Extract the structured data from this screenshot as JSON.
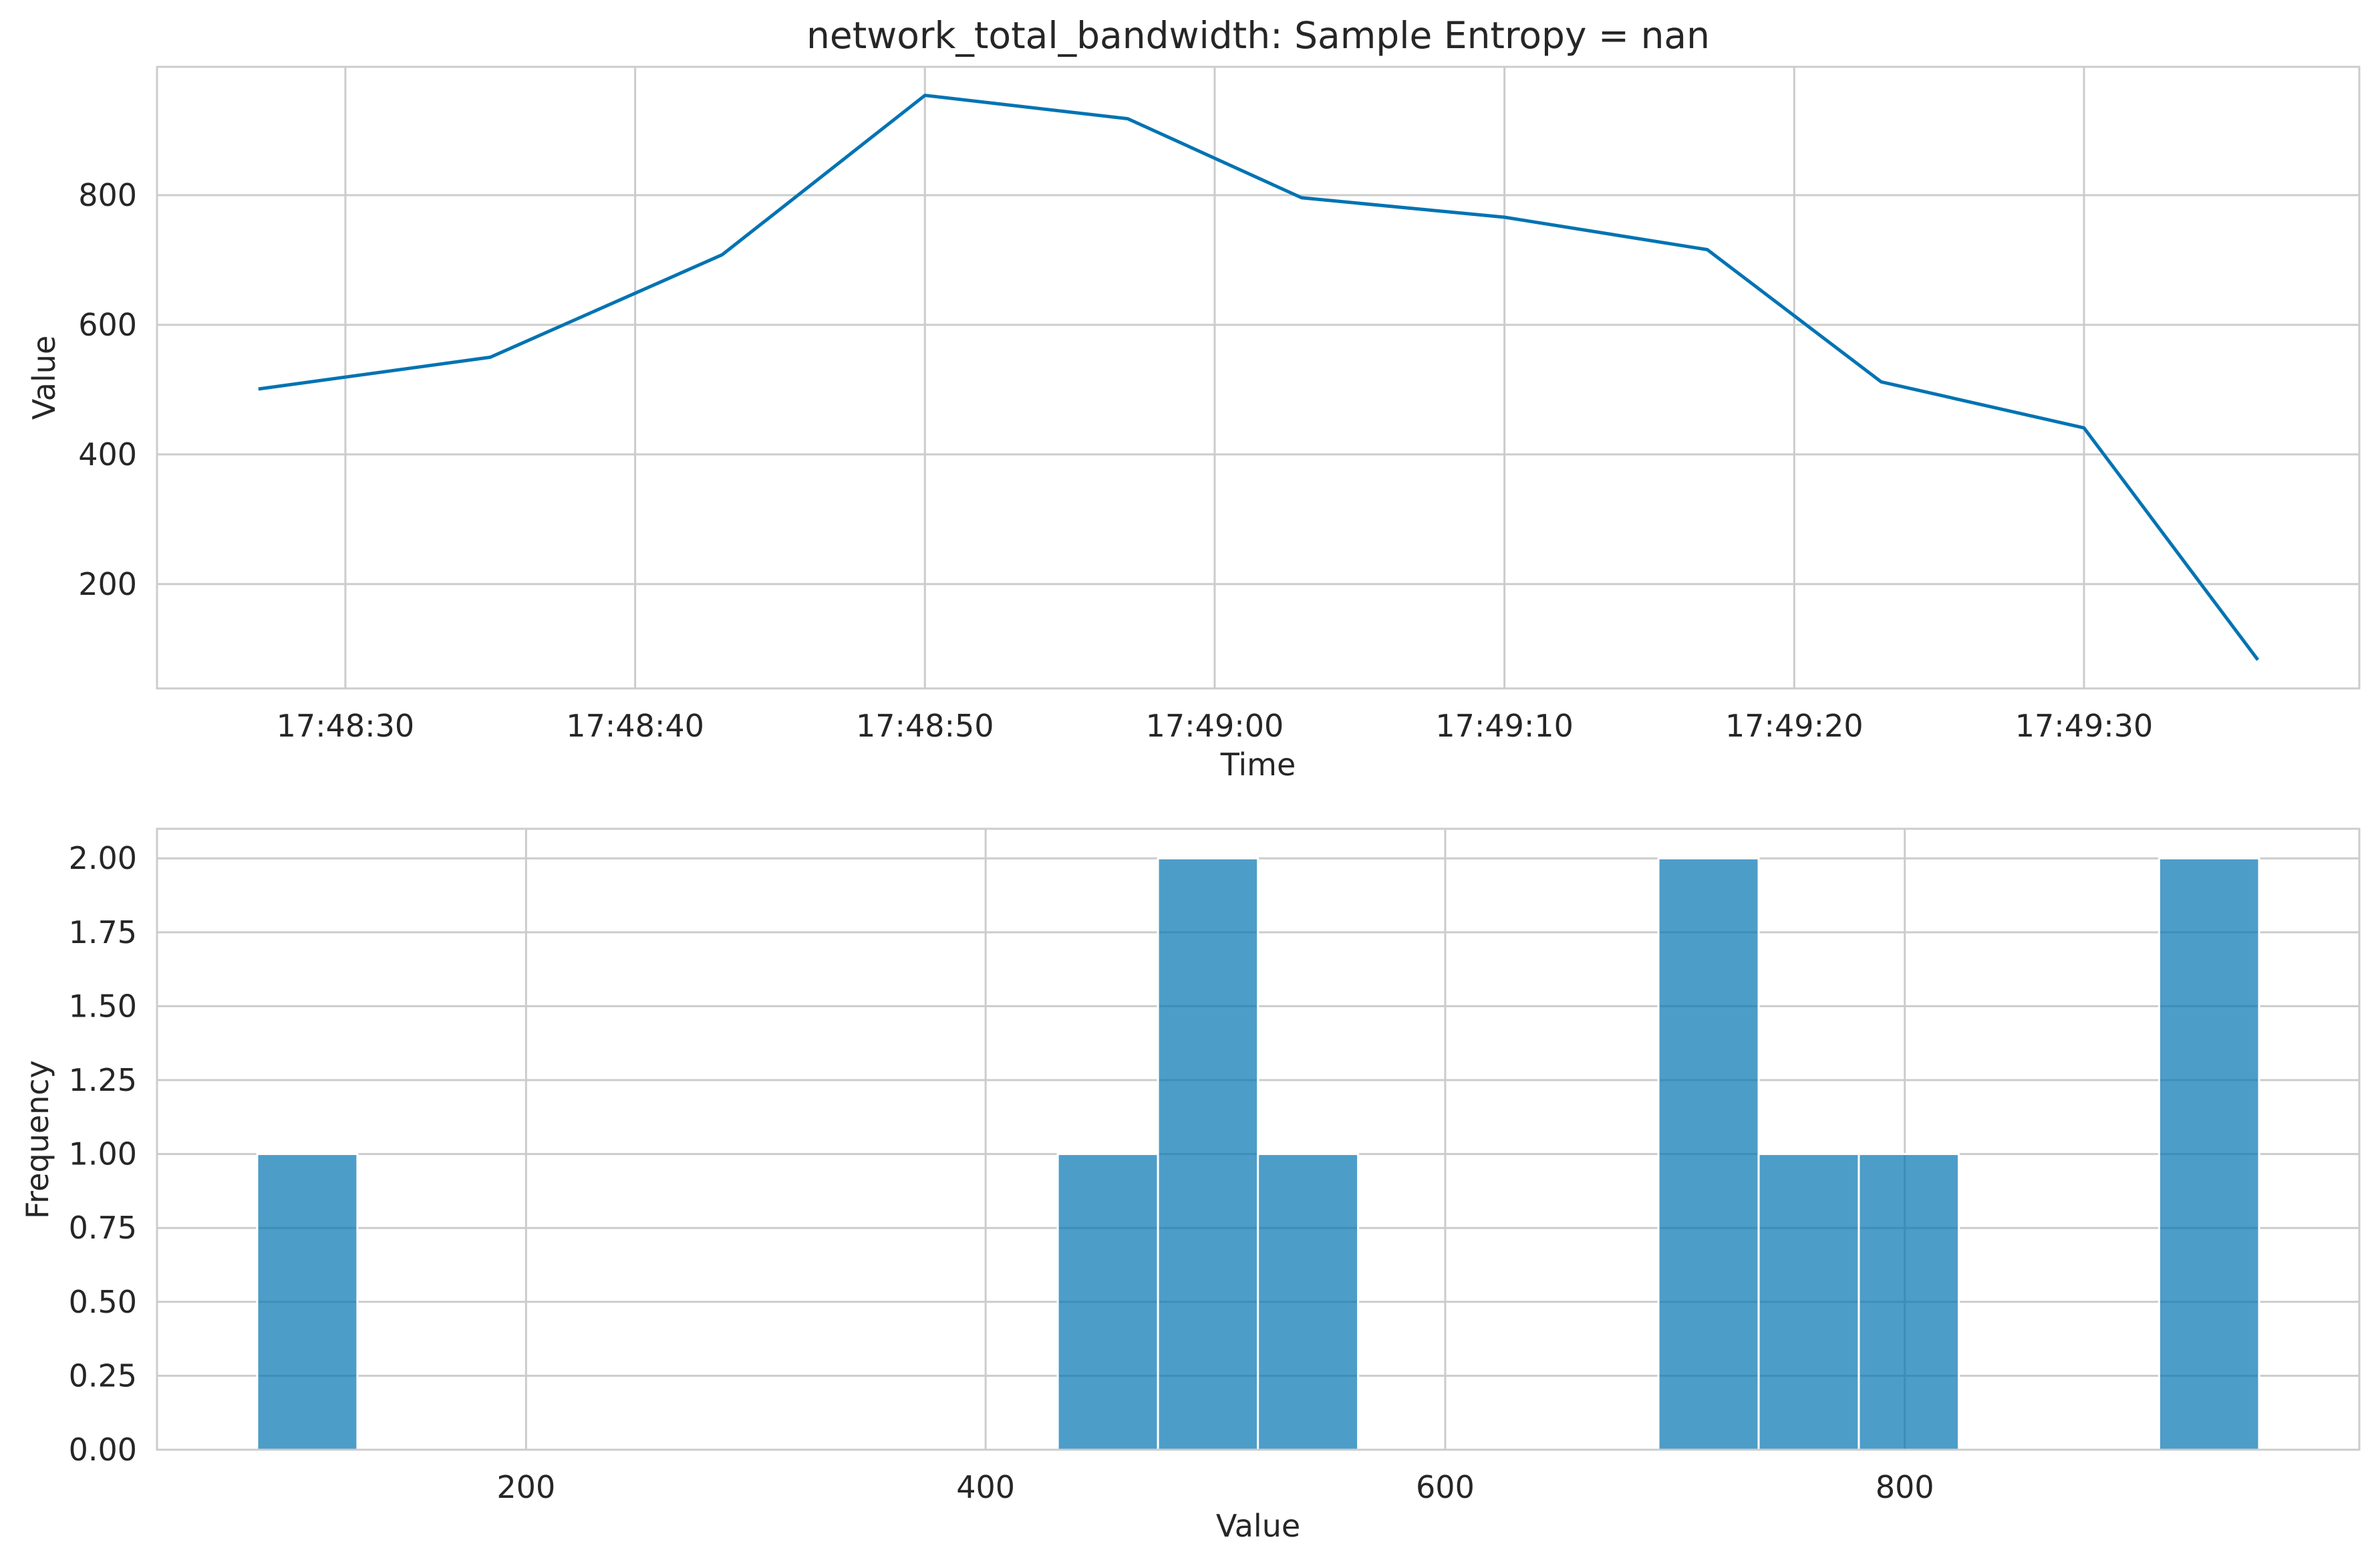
{
  "colors": {
    "line": "#0173b2",
    "bar": "#0173b2",
    "grid": "#cccccc",
    "frame": "#cccccc",
    "text": "#262626"
  },
  "chart_data": [
    {
      "type": "line",
      "title": "network_total_bandwidth: Sample Entropy = nan",
      "xlabel": "Time",
      "ylabel": "Value",
      "x": [
        "17:48:27",
        "17:48:35",
        "17:48:43",
        "17:48:50",
        "17:48:57",
        "17:49:03",
        "17:49:10",
        "17:49:17",
        "17:49:23",
        "17:49:30",
        "17:49:36"
      ],
      "y": [
        501,
        550,
        708,
        954,
        918,
        796,
        766,
        716,
        512,
        441,
        83
      ],
      "xticks": [
        "17:48:30",
        "17:48:40",
        "17:48:50",
        "17:49:00",
        "17:49:10",
        "17:49:20",
        "17:49:30"
      ],
      "yticks": [
        "200",
        "400",
        "600",
        "800"
      ],
      "xlim": [
        "17:48:23.5",
        "17:49:39.5"
      ],
      "ylim": [
        39,
        998
      ],
      "grid": true
    },
    {
      "type": "bar",
      "xlabel": "Value",
      "ylabel": "Frequency",
      "bins": [
        {
          "x0": 83,
          "x1": 126.6,
          "count": 1
        },
        {
          "x0": 431.4,
          "x1": 475,
          "count": 1
        },
        {
          "x0": 475,
          "x1": 518.5,
          "count": 2
        },
        {
          "x0": 518.5,
          "x1": 562.1,
          "count": 1
        },
        {
          "x0": 692.8,
          "x1": 736.4,
          "count": 2
        },
        {
          "x0": 736.4,
          "x1": 780,
          "count": 1
        },
        {
          "x0": 780,
          "x1": 823.5,
          "count": 1
        },
        {
          "x0": 910.7,
          "x1": 954.2,
          "count": 2
        }
      ],
      "xticks": [
        "200",
        "400",
        "600",
        "800"
      ],
      "yticks": [
        "0.00",
        "0.25",
        "0.50",
        "0.75",
        "1.00",
        "1.25",
        "1.50",
        "1.75",
        "2.00"
      ],
      "xlim": [
        39.4,
        997.8
      ],
      "ylim": [
        0,
        2.1
      ],
      "grid": true
    }
  ]
}
